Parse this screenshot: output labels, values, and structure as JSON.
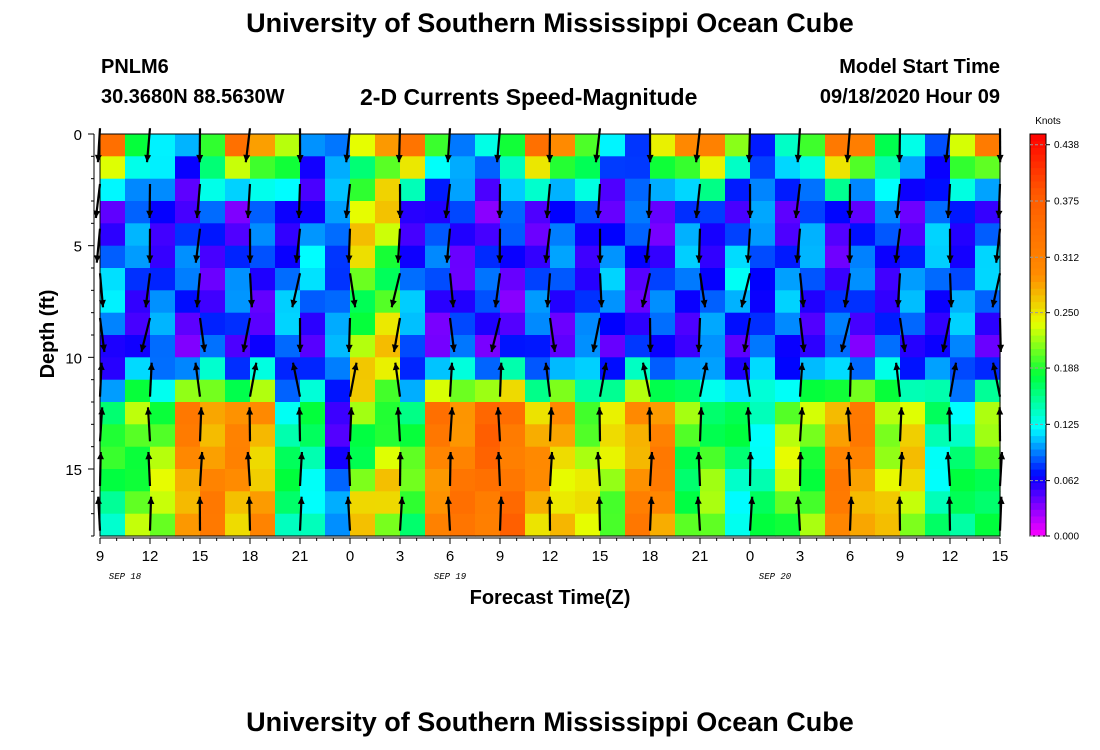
{
  "header": {
    "title": "University of Southern Mississippi Ocean Cube",
    "station": "PNLM6",
    "coords": "30.3680N 88.5630W",
    "subtitle": "2-D Currents Speed-Magnitude",
    "model_start_label": "Model Start Time",
    "model_start_value": "09/18/2020 Hour 09"
  },
  "footer": {
    "title": "University of Southern Mississippi Ocean Cube"
  },
  "chart_data": {
    "type": "heatmap",
    "xlabel": "Forecast Time(Z)",
    "ylabel": "Depth (ft)",
    "x_tick_labels": [
      "9",
      "12",
      "15",
      "18",
      "21",
      "0",
      "3",
      "6",
      "9",
      "12",
      "15",
      "18",
      "21",
      "0",
      "3",
      "6",
      "9",
      "12",
      "15"
    ],
    "date_labels": [
      {
        "label": "SEP 18",
        "at_hour": 1.5
      },
      {
        "label": "SEP 19",
        "at_hour": 21
      },
      {
        "label": "SEP 20",
        "at_hour": 40.5
      }
    ],
    "x_range_hours_from_start": [
      0,
      54
    ],
    "x_start": "09/18/2020 09Z",
    "y_ticks": [
      0,
      5,
      10,
      15
    ],
    "ylim": [
      0,
      18
    ],
    "y_inverted": true,
    "colorbar": {
      "label": "Knots",
      "ticks": [
        "0.000",
        "0.062",
        "0.125",
        "0.188",
        "0.250",
        "0.312",
        "0.375",
        "0.438"
      ],
      "range": [
        0,
        0.45
      ]
    },
    "depth_bands_ft": [
      0.5,
      1.5,
      2.5,
      3.5,
      4.5,
      5.5,
      6.5,
      7.5,
      8.5,
      9.5,
      10.5,
      11.5,
      12.5,
      13.5,
      14.5,
      15.5,
      16.5,
      17.5
    ],
    "arrows_every_hours": 3,
    "arrow_depths_ft": [
      0.5,
      3,
      5,
      7,
      9,
      11,
      13,
      15,
      17
    ],
    "arrow_note": "black vectors: pointing down in upper layer, up in lower layer"
  }
}
